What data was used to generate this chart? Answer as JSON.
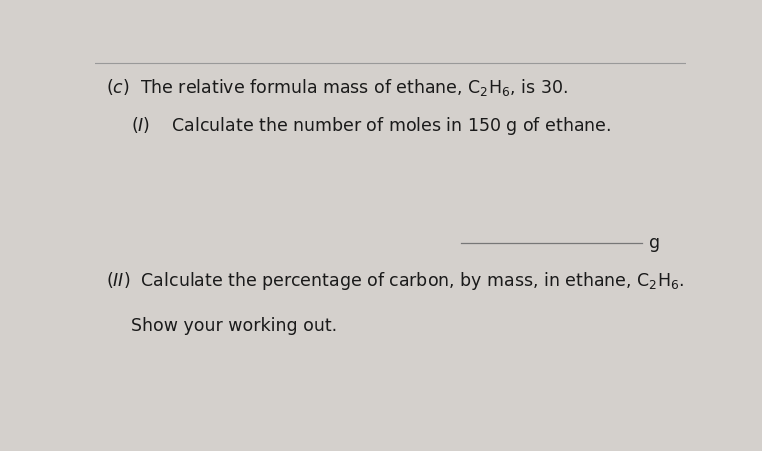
{
  "bg_color": "#d4d0cc",
  "top_line_color": "#999999",
  "answer_line_color": "#777777",
  "text_color": "#1a1a1a",
  "fig_width": 7.62,
  "fig_height": 4.51,
  "dpi": 100,
  "fs_main": 12.5,
  "fs_sub": 8.5,
  "line1_part1": "(c)  The relative formula mass of ethane, C",
  "line1_end": ", is 30.",
  "line2": "(I)    Calculate the number of moles in 150 g of ethane.",
  "line3_part1": "(II)  Calculate the percentage of carbon, by mass, in ethane, C",
  "line3_end": ".",
  "line4": "Show your working out.",
  "answer_label": "g"
}
